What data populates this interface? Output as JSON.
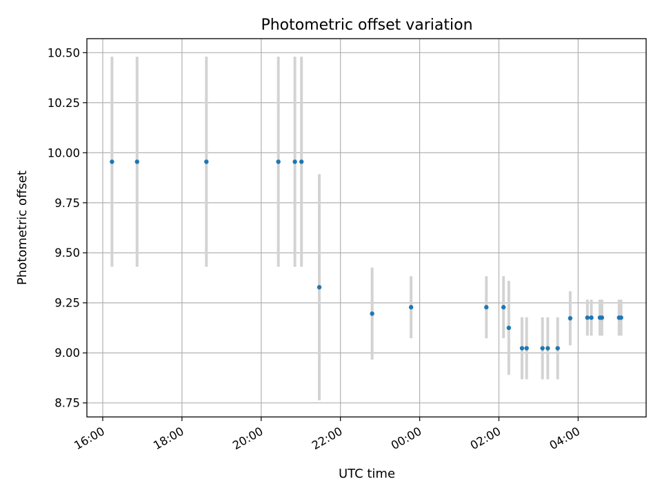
{
  "chart_data": {
    "type": "scatter",
    "title": "Photometric offset variation",
    "xlabel": "UTC time",
    "ylabel": "Photometric offset",
    "x_tick_labels": [
      "16:00",
      "18:00",
      "20:00",
      "22:00",
      "00:00",
      "02:00",
      "04:00"
    ],
    "x_ticks": [
      "2000-01-01T16:00",
      "2000-01-01T18:00",
      "2000-01-01T20:00",
      "2000-01-01T22:00",
      "2000-01-02T00:00",
      "2000-01-02T02:00",
      "2000-01-02T04:00"
    ],
    "y_ticks": [
      8.75,
      9.0,
      9.25,
      9.5,
      9.75,
      10.0,
      10.25,
      10.5
    ],
    "y_tick_labels": [
      "8.75",
      "9.00",
      "9.25",
      "9.50",
      "9.75",
      "10.00",
      "10.25",
      "10.50"
    ],
    "xlim": [
      "2000-01-01T15:36",
      "2000-01-02T05:43"
    ],
    "ylim": [
      8.68,
      10.57
    ],
    "grid": true,
    "point_color": "#1f77b4",
    "errorbar_color": "#d3d3d3",
    "points": [
      {
        "x": "2000-01-01T16:14",
        "y": 9.955,
        "err": 0.525
      },
      {
        "x": "2000-01-01T16:52",
        "y": 9.955,
        "err": 0.525
      },
      {
        "x": "2000-01-01T18:37",
        "y": 9.955,
        "err": 0.525
      },
      {
        "x": "2000-01-01T20:26",
        "y": 9.955,
        "err": 0.525
      },
      {
        "x": "2000-01-01T20:51",
        "y": 9.955,
        "err": 0.525
      },
      {
        "x": "2000-01-01T21:01",
        "y": 9.955,
        "err": 0.525
      },
      {
        "x": "2000-01-01T21:28",
        "y": 9.328,
        "err": 0.565
      },
      {
        "x": "2000-01-01T22:48",
        "y": 9.196,
        "err": 0.23
      },
      {
        "x": "2000-01-01T23:47",
        "y": 9.228,
        "err": 0.155
      },
      {
        "x": "2000-01-02T01:41",
        "y": 9.228,
        "err": 0.155
      },
      {
        "x": "2000-01-02T02:07",
        "y": 9.228,
        "err": 0.155
      },
      {
        "x": "2000-01-02T02:15",
        "y": 9.125,
        "err": 0.235
      },
      {
        "x": "2000-01-02T02:35",
        "y": 9.023,
        "err": 0.155
      },
      {
        "x": "2000-01-02T02:42",
        "y": 9.023,
        "err": 0.155
      },
      {
        "x": "2000-01-02T03:06",
        "y": 9.023,
        "err": 0.155
      },
      {
        "x": "2000-01-02T03:14",
        "y": 9.023,
        "err": 0.155
      },
      {
        "x": "2000-01-02T03:29",
        "y": 9.023,
        "err": 0.155
      },
      {
        "x": "2000-01-02T03:48",
        "y": 9.173,
        "err": 0.135
      },
      {
        "x": "2000-01-02T04:14",
        "y": 9.176,
        "err": 0.09
      },
      {
        "x": "2000-01-02T04:20",
        "y": 9.176,
        "err": 0.09
      },
      {
        "x": "2000-01-02T04:33",
        "y": 9.176,
        "err": 0.09
      },
      {
        "x": "2000-01-02T04:36",
        "y": 9.176,
        "err": 0.09
      },
      {
        "x": "2000-01-02T05:02",
        "y": 9.176,
        "err": 0.09
      },
      {
        "x": "2000-01-02T05:05",
        "y": 9.176,
        "err": 0.09
      }
    ]
  }
}
